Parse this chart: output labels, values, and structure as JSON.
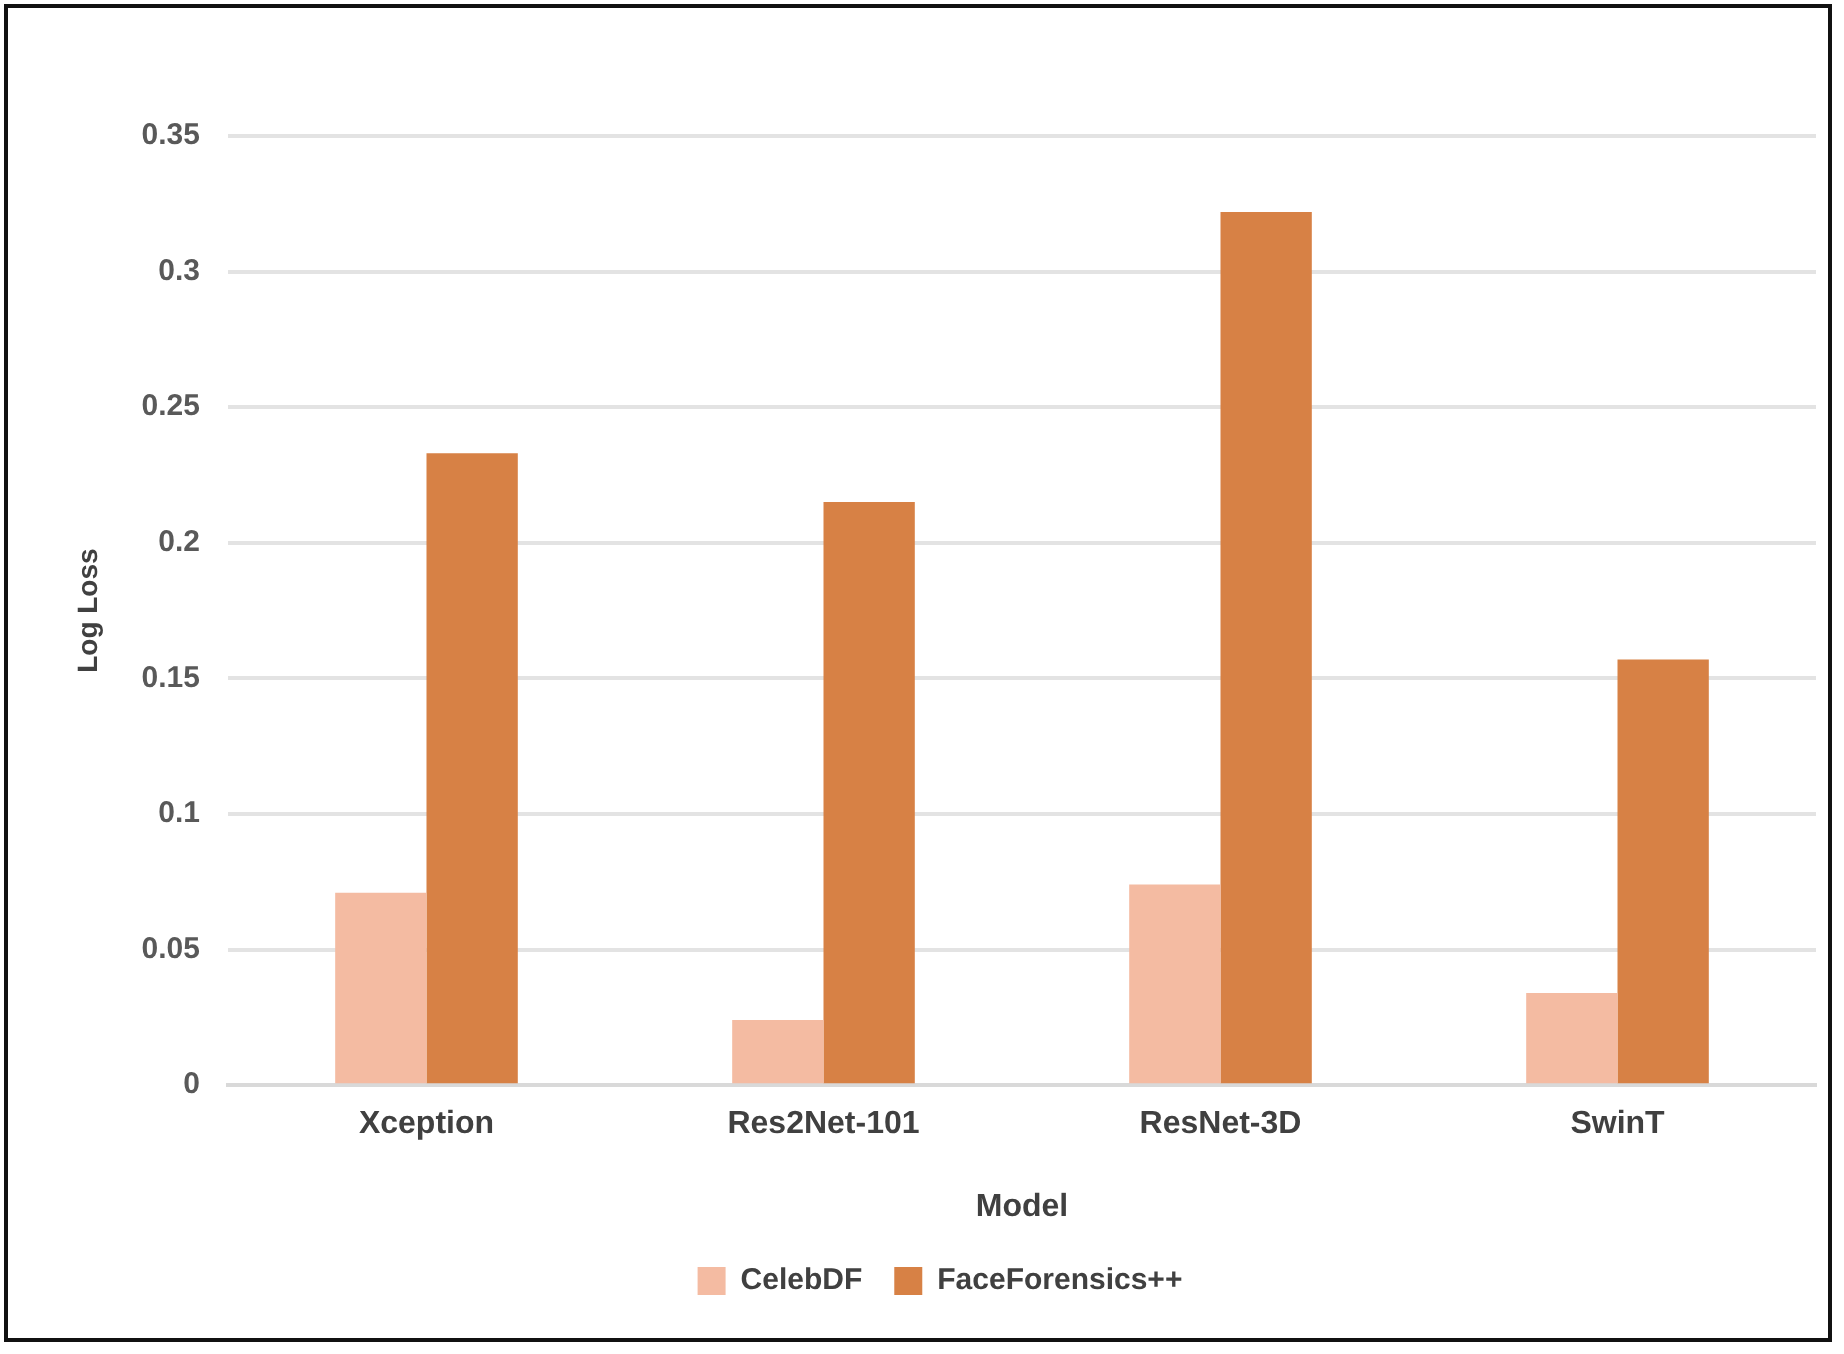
{
  "chart_data": {
    "type": "bar",
    "xlabel": "Model",
    "ylabel": "Log Loss",
    "categories": [
      "Xception",
      "Res2Net-101",
      "ResNet-3D",
      "SwinT"
    ],
    "series": [
      {
        "name": "CelebDF",
        "color": "#f4bba2",
        "values": [
          0.071,
          0.024,
          0.074,
          0.034
        ]
      },
      {
        "name": "FaceForensics++",
        "color": "#d78145",
        "values": [
          0.233,
          0.215,
          0.322,
          0.157
        ]
      }
    ],
    "ylim": [
      0,
      0.35
    ],
    "yticks": [
      0,
      0.05,
      0.1,
      0.15,
      0.2,
      0.25,
      0.3,
      0.35
    ],
    "grid": "y",
    "legend": "bottom"
  }
}
